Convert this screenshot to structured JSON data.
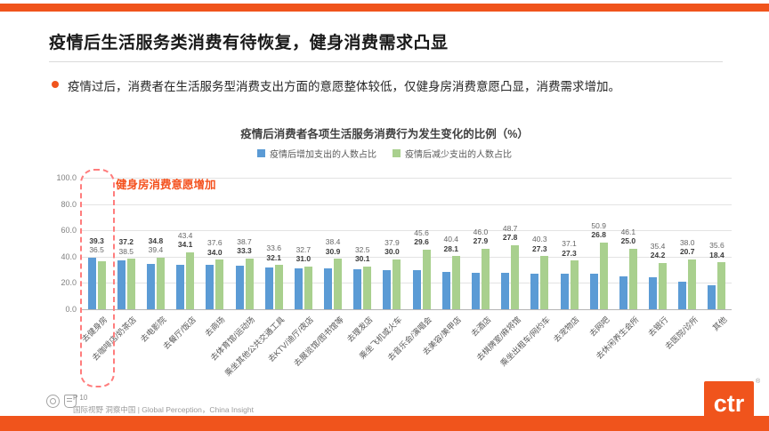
{
  "slide": {
    "title": "疫情后生活服务类消费有待恢复，健身消费需求凸显",
    "bullet": "疫情过后，消费者在生活服务型消费支出方面的意愿整体较低，仅健身房消费意愿凸显，消费需求增加。",
    "annotation": "健身房消费意愿增加",
    "page_number": "P 10",
    "footer_text": "国际视野 洞察中国 | Global Perception，China Insight",
    "logo_text": "ctr",
    "registered_mark": "®"
  },
  "colors": {
    "accent_orange": "#F0541C",
    "bar_blue": "#5B9BD5",
    "bar_green": "#A9D08E",
    "highlight_red": "#FF7D7D",
    "annotation_orange": "#F4511E"
  },
  "chart_data": {
    "type": "bar",
    "title": "疫情后消费者各项生活服务消费行为发生变化的比例（%）",
    "legend": [
      "疫情后增加支出的人数占比",
      "疫情后减少支出的人数占比"
    ],
    "legend_position": "top",
    "grid": true,
    "ylim": [
      0,
      100
    ],
    "yticks": [
      "100.0",
      "80.0",
      "60.0",
      "40.0",
      "20.0",
      "0.0"
    ],
    "blue_label_on_top_count": 3,
    "categories": [
      "去健身房",
      "去咖啡店/奶茶店",
      "去电影院",
      "去餐厅/饭店",
      "去商场",
      "去体育馆/运动场",
      "乘坐其他公共交通工具",
      "去KTV/迪厅/夜店",
      "去展览馆/图书馆等",
      "去理发店",
      "乘坐飞机或火车",
      "去音乐会/演唱会",
      "去美容/美甲店",
      "去酒店",
      "去棋牌室/麻将馆",
      "乘坐出租车/网约车",
      "去宠物店",
      "去网吧",
      "去休闲养生会所",
      "去银行",
      "去医院/诊所",
      "其他"
    ],
    "series": [
      {
        "name": "疫情后增加支出的人数占比",
        "color": "#5B9BD5",
        "values": [
          39.3,
          37.2,
          34.8,
          34.1,
          34.0,
          33.3,
          32.1,
          31.0,
          30.9,
          30.1,
          30.0,
          29.6,
          28.1,
          27.9,
          27.8,
          27.3,
          27.3,
          26.8,
          25.0,
          24.2,
          20.7,
          18.4
        ]
      },
      {
        "name": "疫情后减少支出的人数占比",
        "color": "#A9D08E",
        "values": [
          36.5,
          38.5,
          39.4,
          43.4,
          37.6,
          38.7,
          33.6,
          32.7,
          38.4,
          32.5,
          37.9,
          45.6,
          40.4,
          46.0,
          48.7,
          40.3,
          37.1,
          50.9,
          46.1,
          35.4,
          38.0,
          35.6
        ]
      }
    ]
  }
}
